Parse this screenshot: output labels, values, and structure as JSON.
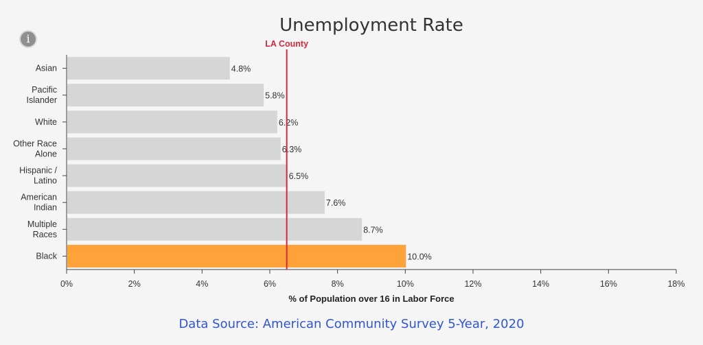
{
  "info_icon": {
    "icon": "info-icon",
    "glyph": "i"
  },
  "source_text": "Data Source: American Community Survey 5-Year, 2020",
  "chart_data": {
    "type": "bar",
    "orientation": "horizontal",
    "title": "Unemployment Rate",
    "xlabel": "% of Population over 16 in Labor Force",
    "ylabel": "",
    "xlim": [
      0,
      18
    ],
    "ticks": [
      0,
      2,
      4,
      6,
      8,
      10,
      12,
      14,
      16,
      18
    ],
    "tick_labels": [
      "0%",
      "2%",
      "4%",
      "6%",
      "8%",
      "10%",
      "12%",
      "14%",
      "16%",
      "18%"
    ],
    "grid": false,
    "categories": [
      [
        "Asian"
      ],
      [
        "Pacific",
        "Islander"
      ],
      [
        "White"
      ],
      [
        "Other Race",
        "Alone"
      ],
      [
        "Hispanic /",
        "Latino"
      ],
      [
        "American",
        "Indian"
      ],
      [
        "Multiple",
        "Races"
      ],
      [
        "Black"
      ]
    ],
    "values": [
      4.8,
      5.8,
      6.2,
      6.3,
      6.5,
      7.6,
      8.7,
      10.0
    ],
    "value_labels": [
      "4.8%",
      "5.8%",
      "6.2%",
      "6.3%",
      "6.5%",
      "7.6%",
      "8.7%",
      "10.0%"
    ],
    "highlight_index": 7,
    "reference_line": {
      "label": "LA County",
      "value": 6.5,
      "color": "#d7263d"
    },
    "colors": {
      "bar": "#d6d6d6",
      "highlight": "#ffa23a",
      "axis": "#444444"
    }
  }
}
